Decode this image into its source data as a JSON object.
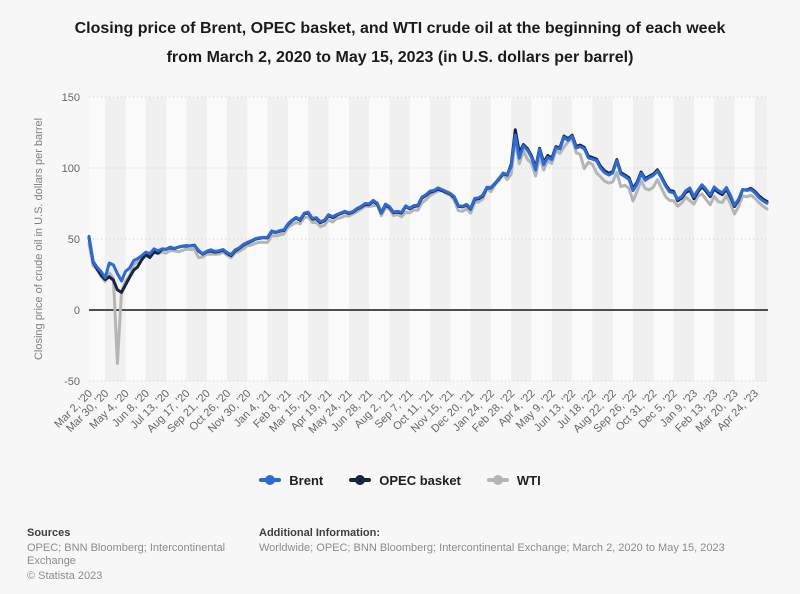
{
  "page": {
    "background": "#f7f7f7"
  },
  "title": {
    "line1": "Closing price of Brent, OPEC basket, and WTI crude oil at the beginning of each week",
    "line2": "from March 2, 2020 to May 15, 2023 (in U.S. dollars per barrel)"
  },
  "chart_data": {
    "type": "line",
    "title": "Closing price of Brent, OPEC basket, and WTI crude oil at the beginning of each week from March 2, 2020 to May 15, 2023 (in U.S. dollars per barrel)",
    "xlabel": "",
    "ylabel": "Closing price of crude oil in U.S. dollars per barrel",
    "ylim": [
      -50,
      150
    ],
    "y_ticks": [
      150,
      100,
      50,
      0,
      -50
    ],
    "grid": "horizontal dotted; zero axis solid; alternating vertical bands",
    "legend_position": "bottom center",
    "x_unit": "weeks from Mar 2, 2020 to May 15, 2023",
    "x_tick_positions": [
      0,
      4,
      9,
      14,
      19,
      24,
      29,
      34,
      39,
      44,
      49,
      54,
      59,
      64,
      69,
      74,
      79,
      84,
      89,
      94,
      99,
      104,
      109,
      114,
      119,
      124,
      129,
      134,
      139,
      144,
      149,
      154,
      159,
      164
    ],
    "x_tick_labels": [
      "Mar 2, '20",
      "Mar 30, '20",
      "May 4, '20",
      "Jun 8, '20",
      "Jul 13, '20",
      "Aug 17, '20",
      "Sep 21, '20",
      "Oct 26, '20",
      "Nov 30, '20",
      "Jan 4, '21",
      "Feb 8, '21",
      "Mar 15, '21",
      "Apr 19, '21",
      "May 24, '21",
      "Jun 28, '21",
      "Aug 2, '21",
      "Sep 7, '21",
      "Oct 11, '21",
      "Nov 15, '21",
      "Dec 20, '21",
      "Jan 24, '22",
      "Feb 28, '22",
      "Apr 4, '22",
      "May 9, '22",
      "Jun 13, '22",
      "Jul 18, '22",
      "Aug 22, '22",
      "Sep 26, '22",
      "Oct 31, '22",
      "Dec 5, '22",
      "Jan 9, '23",
      "Feb 13, '23",
      "Mar 20, '23",
      "Apr 24, '23"
    ],
    "series": [
      {
        "name": "Brent",
        "color": "#2d6ad3",
        "values": [
          51.9,
          34.4,
          30.1,
          27.0,
          22.8,
          33.1,
          31.7,
          25.6,
          20.5,
          27.2,
          29.6,
          34.8,
          36.2,
          38.3,
          40.8,
          39.7,
          43.1,
          41.7,
          43.1,
          42.7,
          44.3,
          43.4,
          44.2,
          45.0,
          45.4,
          45.1,
          45.3,
          42.0,
          39.6,
          41.4,
          42.4,
          41.3,
          41.7,
          42.6,
          40.5,
          39.0,
          42.4,
          43.8,
          46.1,
          47.6,
          48.8,
          50.3,
          50.9,
          51.1,
          51.1,
          55.7,
          54.8,
          55.9,
          56.4,
          60.6,
          63.3,
          65.2,
          63.7,
          68.2,
          68.9,
          64.6,
          65.0,
          62.2,
          63.3,
          67.1,
          65.7,
          67.2,
          68.3,
          69.5,
          68.5,
          69.3,
          71.5,
          72.9,
          75.0,
          74.7,
          77.2,
          75.2,
          68.6,
          74.5,
          72.9,
          69.0,
          69.5,
          68.8,
          73.4,
          71.7,
          73.5,
          73.9,
          79.5,
          81.3,
          83.7,
          84.3,
          86.0,
          84.7,
          83.4,
          82.1,
          79.7,
          73.4,
          73.1,
          74.4,
          71.5,
          78.6,
          79.0,
          80.9,
          86.5,
          86.3,
          89.3,
          92.7,
          96.5,
          95.4,
          101.0,
          123.2,
          106.9,
          115.6,
          112.5,
          107.5,
          98.5,
          113.2,
          102.3,
          107.6,
          105.9,
          114.2,
          113.4,
          121.7,
          119.5,
          122.3,
          114.1,
          115.1,
          113.5,
          107.1,
          106.3,
          105.2,
          100.0,
          96.7,
          95.1,
          96.5,
          105.1,
          95.7,
          94.0,
          92.0,
          84.1,
          88.9,
          96.2,
          91.4,
          93.3,
          94.8,
          97.9,
          93.1,
          87.5,
          83.2,
          82.7,
          78.0,
          79.8,
          84.0,
          85.9,
          79.7,
          84.5,
          88.2,
          84.9,
          81.0,
          86.6,
          84.1,
          82.5,
          86.2,
          80.8,
          73.8,
          78.1,
          84.9,
          84.2,
          84.8,
          82.7,
          79.3,
          77.0,
          75.2
        ]
      },
      {
        "name": "OPEC basket",
        "color": "#16253d",
        "values": [
          51.0,
          33.9,
          28.7,
          24.5,
          21.4,
          23.4,
          21.0,
          14.2,
          12.4,
          17.7,
          23.0,
          28.0,
          30.4,
          35.5,
          39.1,
          37.0,
          41.0,
          40.0,
          42.7,
          42.9,
          43.8,
          43.2,
          44.3,
          44.9,
          45.0,
          45.3,
          45.6,
          41.5,
          39.3,
          41.0,
          41.6,
          40.7,
          41.2,
          42.1,
          39.9,
          38.3,
          41.7,
          43.3,
          45.6,
          47.1,
          48.4,
          49.9,
          50.5,
          50.9,
          50.8,
          55.2,
          54.6,
          55.5,
          56.0,
          60.1,
          62.9,
          64.8,
          63.2,
          67.7,
          68.4,
          64.0,
          64.3,
          61.5,
          62.8,
          66.4,
          65.0,
          66.7,
          67.9,
          69.0,
          68.0,
          68.9,
          71.0,
          72.4,
          74.3,
          74.2,
          76.5,
          74.6,
          68.3,
          73.8,
          72.3,
          68.6,
          69.0,
          68.3,
          72.9,
          71.2,
          72.9,
          73.4,
          78.8,
          80.7,
          82.9,
          83.7,
          85.2,
          84.0,
          82.8,
          81.6,
          79.1,
          73.0,
          72.6,
          73.9,
          71.0,
          77.9,
          78.4,
          80.2,
          86.0,
          85.9,
          89.0,
          92.3,
          96.0,
          95.0,
          102.5,
          127.0,
          110.7,
          116.5,
          113.6,
          108.5,
          100.2,
          113.9,
          104.0,
          108.8,
          107.0,
          115.0,
          114.2,
          122.5,
          120.6,
          123.1,
          115.2,
          116.1,
          114.5,
          108.3,
          107.3,
          106.3,
          101.2,
          98.0,
          96.3,
          97.5,
          105.9,
          96.8,
          95.1,
          93.2,
          85.4,
          90.0,
          97.2,
          92.5,
          94.2,
          95.7,
          98.7,
          94.0,
          88.4,
          84.2,
          83.6,
          77.0,
          78.9,
          82.8,
          84.4,
          78.4,
          83.2,
          86.9,
          83.6,
          79.8,
          85.3,
          82.9,
          81.3,
          85.0,
          79.6,
          72.9,
          77.3,
          84.6,
          84.6,
          85.6,
          83.6,
          80.4,
          78.2,
          76.4
        ]
      },
      {
        "name": "WTI",
        "color": "#b5b5b5",
        "values": [
          46.8,
          31.1,
          28.7,
          23.4,
          20.1,
          26.1,
          22.4,
          -37.6,
          12.8,
          20.4,
          24.1,
          31.8,
          33.7,
          35.4,
          38.2,
          37.1,
          40.5,
          39.7,
          40.6,
          40.1,
          41.9,
          41.6,
          41.0,
          41.9,
          42.9,
          42.6,
          42.6,
          36.8,
          37.3,
          39.3,
          39.3,
          39.2,
          39.4,
          40.8,
          38.6,
          36.8,
          40.3,
          41.3,
          43.1,
          45.3,
          45.8,
          47.0,
          47.7,
          47.6,
          47.6,
          52.3,
          52.1,
          52.8,
          53.6,
          58.0,
          60.1,
          61.7,
          60.6,
          65.1,
          65.4,
          61.6,
          61.6,
          58.7,
          59.7,
          63.4,
          61.9,
          64.5,
          64.9,
          66.3,
          66.1,
          67.7,
          69.2,
          70.9,
          73.1,
          72.9,
          73.4,
          74.1,
          66.4,
          71.9,
          71.3,
          66.5,
          67.3,
          65.6,
          68.9,
          68.4,
          70.5,
          70.3,
          75.5,
          77.6,
          80.5,
          82.4,
          83.8,
          84.1,
          81.9,
          80.9,
          76.8,
          69.9,
          69.5,
          71.3,
          68.2,
          75.6,
          76.1,
          78.2,
          85.7,
          83.3,
          88.2,
          91.3,
          95.5,
          91.9,
          95.7,
          119.4,
          103.0,
          112.1,
          106.0,
          103.3,
          94.3,
          108.2,
          98.5,
          105.2,
          103.1,
          112.4,
          110.3,
          114.7,
          118.5,
          120.9,
          110.7,
          109.6,
          99.5,
          104.1,
          102.6,
          96.7,
          93.9,
          90.8,
          89.4,
          90.2,
          97.0,
          86.9,
          87.8,
          85.7,
          76.7,
          83.6,
          91.1,
          85.5,
          84.6,
          86.5,
          91.8,
          85.9,
          80.0,
          77.2,
          77.0,
          73.2,
          75.2,
          79.5,
          77.0,
          74.6,
          80.2,
          81.6,
          77.9,
          74.1,
          80.1,
          76.2,
          75.7,
          80.5,
          74.8,
          67.6,
          72.8,
          80.4,
          79.7,
          80.8,
          78.8,
          75.7,
          73.2,
          71.1
        ]
      }
    ],
    "colors": {
      "band_dark": "#f0f0f1",
      "band_light": "#fafafa",
      "gridline": "#cbcbcb",
      "zero_line": "#4d4d4d",
      "tick_text": "#666666"
    }
  },
  "legend": {
    "items": [
      {
        "label": "Brent",
        "color": "#2d6ad3"
      },
      {
        "label": "OPEC basket",
        "color": "#16253d"
      },
      {
        "label": "WTI",
        "color": "#b5b5b5"
      }
    ]
  },
  "footer": {
    "sources_label": "Sources",
    "sources_text": "OPEC; BNN Bloomberg; Intercontinental Exchange",
    "copyright": "© Statista 2023",
    "additional_label": "Additional Information:",
    "additional_text": "Worldwide; OPEC; BNN Bloomberg; Intercontinental Exchange; March 2, 2020 to May 15, 2023"
  }
}
